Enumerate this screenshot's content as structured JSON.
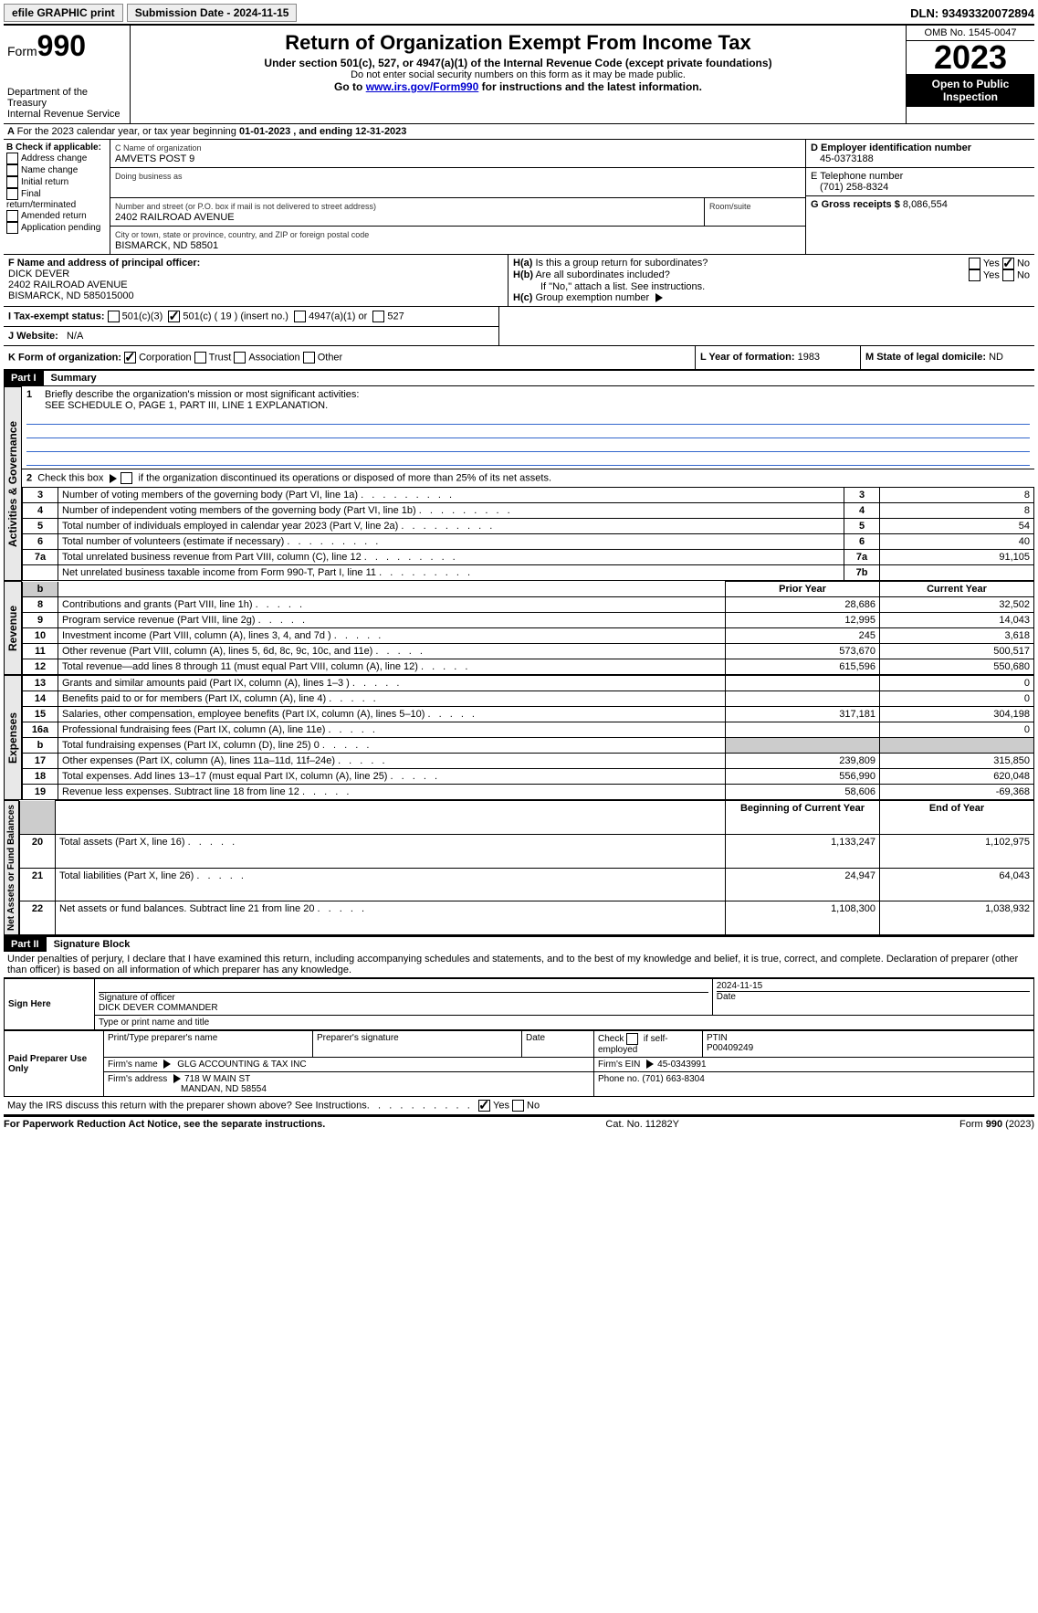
{
  "topbar": {
    "efile": "efile GRAPHIC print",
    "submission": "Submission Date - 2024-11-15",
    "dln": "DLN: 93493320072894"
  },
  "header": {
    "form_prefix": "Form",
    "form_no": "990",
    "dept": "Department of the Treasury",
    "irs": "Internal Revenue Service",
    "title": "Return of Organization Exempt From Income Tax",
    "sub": "Under section 501(c), 527, or 4947(a)(1) of the Internal Revenue Code (except private foundations)",
    "warn": "Do not enter social security numbers on this form as it may be made public.",
    "goto_pre": "Go to ",
    "goto_link": "www.irs.gov/Form990",
    "goto_post": " for instructions and the latest information.",
    "omb": "OMB No. 1545-0047",
    "year": "2023",
    "inspect": "Open to Public Inspection"
  },
  "periodA": {
    "text_pre": "For the 2023 calendar year, or tax year beginning ",
    "begin": "01-01-2023",
    "mid": " , and ending ",
    "end": "12-31-2023"
  },
  "boxB": {
    "title": "B Check if applicable:",
    "opts": [
      "Address change",
      "Name change",
      "Initial return",
      "Final return/terminated",
      "Amended return",
      "Application pending"
    ]
  },
  "boxC": {
    "name_lbl": "C Name of organization",
    "name": "AMVETS POST 9",
    "dba_lbl": "Doing business as",
    "addr_lbl": "Number and street (or P.O. box if mail is not delivered to street address)",
    "addr": "2402 RAILROAD AVENUE",
    "room_lbl": "Room/suite",
    "city_lbl": "City or town, state or province, country, and ZIP or foreign postal code",
    "city": "BISMARCK, ND  58501"
  },
  "boxD": {
    "lbl": "D Employer identification number",
    "val": "45-0373188"
  },
  "boxE": {
    "lbl": "E Telephone number",
    "val": "(701) 258-8324"
  },
  "boxG": {
    "lbl": "G Gross receipts $",
    "val": "8,086,554"
  },
  "boxF": {
    "lbl": "F  Name and address of principal officer:",
    "name": "DICK DEVER",
    "addr1": "2402 RAILROAD AVENUE",
    "addr2": "BISMARCK, ND  585015000"
  },
  "boxH": {
    "a_lbl": "H(a)  Is this a group return for subordinates?",
    "b_lbl": "H(b)  Are all subordinates included?",
    "no_note": "If \"No,\" attach a list. See instructions.",
    "c_lbl": "H(c)  Group exemption number",
    "yes": "Yes",
    "no": "No"
  },
  "boxI": {
    "lbl": "I  Tax-exempt status:",
    "o1": "501(c)(3)",
    "o2a": "501(c) (",
    "o2n": "19",
    "o2b": ") (insert no.)",
    "o3": "4947(a)(1) or",
    "o4": "527"
  },
  "boxJ": {
    "lbl": "J  Website:",
    "val": "N/A"
  },
  "boxK": {
    "lbl": "K Form of organization:",
    "opts": [
      "Corporation",
      "Trust",
      "Association",
      "Other"
    ]
  },
  "boxL": {
    "lbl": "L Year of formation:",
    "val": "1983"
  },
  "boxM": {
    "lbl": "M State of legal domicile:",
    "val": "ND"
  },
  "part1": {
    "tag": "Part I",
    "title": "Summary",
    "l1_lbl": "Briefly describe the organization's mission or most significant activities:",
    "l1_val": "SEE SCHEDULE O, PAGE 1, PART III, LINE 1 EXPLANATION.",
    "l2": "Check this box      if the organization discontinued its operations or disposed of more than 25% of its net assets.",
    "sections": {
      "gov": "Activities & Governance",
      "rev": "Revenue",
      "exp": "Expenses",
      "net": "Net Assets or Fund Balances"
    },
    "hdr_prior": "Prior Year",
    "hdr_curr": "Current Year",
    "hdr_boy": "Beginning of Current Year",
    "hdr_eoy": "End of Year",
    "gov_rows": [
      {
        "n": "3",
        "d": "Number of voting members of the governing body (Part VI, line 1a)",
        "c": "3",
        "v": "8"
      },
      {
        "n": "4",
        "d": "Number of independent voting members of the governing body (Part VI, line 1b)",
        "c": "4",
        "v": "8"
      },
      {
        "n": "5",
        "d": "Total number of individuals employed in calendar year 2023 (Part V, line 2a)",
        "c": "5",
        "v": "54"
      },
      {
        "n": "6",
        "d": "Total number of volunteers (estimate if necessary)",
        "c": "6",
        "v": "40"
      },
      {
        "n": "7a",
        "d": "Total unrelated business revenue from Part VIII, column (C), line 12",
        "c": "7a",
        "v": "91,105"
      },
      {
        "n": "",
        "d": "Net unrelated business taxable income from Form 990-T, Part I, line 11",
        "c": "7b",
        "v": ""
      }
    ],
    "rev_rows": [
      {
        "n": "8",
        "d": "Contributions and grants (Part VIII, line 1h)",
        "p": "28,686",
        "c": "32,502"
      },
      {
        "n": "9",
        "d": "Program service revenue (Part VIII, line 2g)",
        "p": "12,995",
        "c": "14,043"
      },
      {
        "n": "10",
        "d": "Investment income (Part VIII, column (A), lines 3, 4, and 7d )",
        "p": "245",
        "c": "3,618"
      },
      {
        "n": "11",
        "d": "Other revenue (Part VIII, column (A), lines 5, 6d, 8c, 9c, 10c, and 11e)",
        "p": "573,670",
        "c": "500,517"
      },
      {
        "n": "12",
        "d": "Total revenue—add lines 8 through 11 (must equal Part VIII, column (A), line 12)",
        "p": "615,596",
        "c": "550,680"
      }
    ],
    "exp_rows": [
      {
        "n": "13",
        "d": "Grants and similar amounts paid (Part IX, column (A), lines 1–3 )",
        "p": "",
        "c": "0"
      },
      {
        "n": "14",
        "d": "Benefits paid to or for members (Part IX, column (A), line 4)",
        "p": "",
        "c": "0"
      },
      {
        "n": "15",
        "d": "Salaries, other compensation, employee benefits (Part IX, column (A), lines 5–10)",
        "p": "317,181",
        "c": "304,198"
      },
      {
        "n": "16a",
        "d": "Professional fundraising fees (Part IX, column (A), line 11e)",
        "p": "",
        "c": "0"
      },
      {
        "n": "b",
        "d": "Total fundraising expenses (Part IX, column (D), line 25) 0",
        "p": "SHADE",
        "c": "SHADE"
      },
      {
        "n": "17",
        "d": "Other expenses (Part IX, column (A), lines 11a–11d, 11f–24e)",
        "p": "239,809",
        "c": "315,850"
      },
      {
        "n": "18",
        "d": "Total expenses. Add lines 13–17 (must equal Part IX, column (A), line 25)",
        "p": "556,990",
        "c": "620,048"
      },
      {
        "n": "19",
        "d": "Revenue less expenses. Subtract line 18 from line 12",
        "p": "58,606",
        "c": "-69,368"
      }
    ],
    "net_rows": [
      {
        "n": "20",
        "d": "Total assets (Part X, line 16)",
        "p": "1,133,247",
        "c": "1,102,975"
      },
      {
        "n": "21",
        "d": "Total liabilities (Part X, line 26)",
        "p": "24,947",
        "c": "64,043"
      },
      {
        "n": "22",
        "d": "Net assets or fund balances. Subtract line 21 from line 20",
        "p": "1,108,300",
        "c": "1,038,932"
      }
    ]
  },
  "part2": {
    "tag": "Part II",
    "title": "Signature Block",
    "decl": "Under penalties of perjury, I declare that I have examined this return, including accompanying schedules and statements, and to the best of my knowledge and belief, it is true, correct, and complete. Declaration of preparer (other than officer) is based on all information of which preparer has any knowledge.",
    "sign_here": "Sign Here",
    "sig_officer_lbl": "Signature of officer",
    "sig_date_lbl": "Date",
    "sig_date": "2024-11-15",
    "officer_name": "DICK DEVER COMMANDER",
    "type_name_lbl": "Type or print name and title",
    "paid_prep": "Paid Preparer Use Only",
    "prep_name_lbl": "Print/Type preparer's name",
    "prep_sig_lbl": "Preparer's signature",
    "date_lbl": "Date",
    "self_emp": "Check       if self-employed",
    "ptin_lbl": "PTIN",
    "ptin": "P00409249",
    "firm_name_lbl": "Firm's name",
    "firm_name": "GLG ACCOUNTING & TAX INC",
    "firm_ein_lbl": "Firm's EIN",
    "firm_ein": "45-0343991",
    "firm_addr_lbl": "Firm's address",
    "firm_addr1": "718 W MAIN ST",
    "firm_addr2": "MANDAN, ND  58554",
    "firm_phone_lbl": "Phone no.",
    "firm_phone": "(701) 663-8304",
    "discuss": "May the IRS discuss this return with the preparer shown above? See Instructions.",
    "yes": "Yes",
    "no": "No"
  },
  "footer": {
    "pra": "For Paperwork Reduction Act Notice, see the separate instructions.",
    "cat": "Cat. No. 11282Y",
    "form": "Form 990 (2023)"
  }
}
